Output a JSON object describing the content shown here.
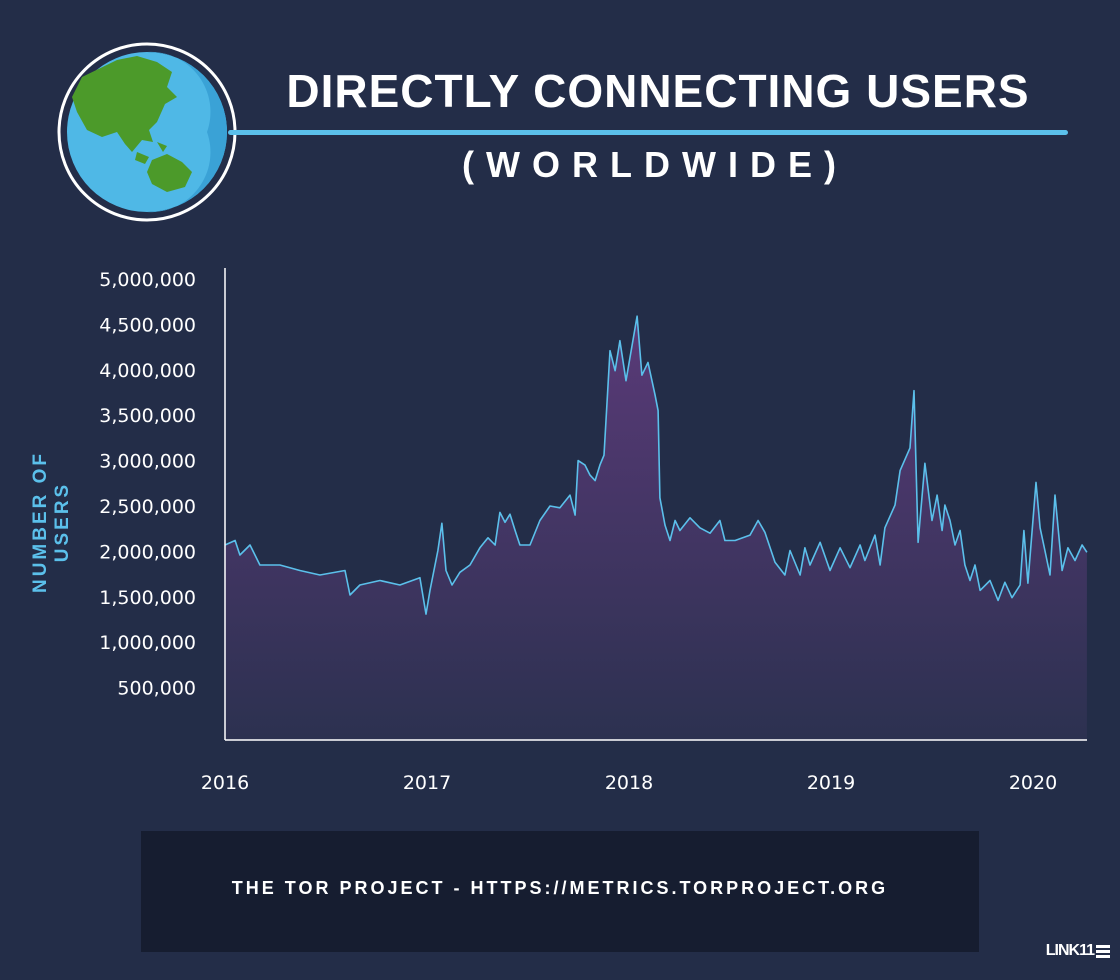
{
  "header": {
    "title": "DIRECTLY CONNECTING USERS",
    "subtitle": "(WORLDWIDE)",
    "icon": "globe-icon"
  },
  "footer": {
    "source": "THE TOR PROJECT - HTTPS://METRICS.TORPROJECT.ORG",
    "logo": "LINK11"
  },
  "colors": {
    "background": "#232d48",
    "accent": "#5bc0eb",
    "fill_top": "#5a3a78",
    "fill_bottom": "#2c3150",
    "footer_box": "#161d30"
  },
  "chart_data": {
    "type": "area",
    "title": "DIRECTLY CONNECTING USERS (WORLDWIDE)",
    "xlabel": "",
    "ylabel": "NUMBER OF USERS",
    "xlim": [
      2016,
      2020.27
    ],
    "ylim": [
      0,
      5000000
    ],
    "x_ticks": [
      2016,
      2017,
      2018,
      2019,
      2020
    ],
    "x_tick_labels": [
      "2016",
      "2017",
      "2018",
      "2019",
      "2020"
    ],
    "y_ticks": [
      500000,
      1000000,
      1500000,
      2000000,
      2500000,
      3000000,
      3500000,
      4000000,
      4500000,
      5000000
    ],
    "y_tick_labels": [
      "500,000",
      "1,000,000",
      "1,500,000",
      "2,000,000",
      "2,500,000",
      "3,000,000",
      "3,500,000",
      "4,000,000",
      "4,500,000",
      "5,000,000"
    ],
    "grid": false,
    "points": [
      [
        2016.0,
        2070000
      ],
      [
        2016.05,
        2120000
      ],
      [
        2016.074,
        1960000
      ],
      [
        2016.124,
        2070000
      ],
      [
        2016.173,
        1850000
      ],
      [
        2016.272,
        1850000
      ],
      [
        2016.371,
        1790000
      ],
      [
        2016.47,
        1740000
      ],
      [
        2016.594,
        1790000
      ],
      [
        2016.619,
        1520000
      ],
      [
        2016.668,
        1630000
      ],
      [
        2016.767,
        1680000
      ],
      [
        2016.866,
        1630000
      ],
      [
        2016.965,
        1710000
      ],
      [
        2016.995,
        1310000
      ],
      [
        2017.015,
        1570000
      ],
      [
        2017.054,
        2010000
      ],
      [
        2017.074,
        2310000
      ],
      [
        2017.094,
        1790000
      ],
      [
        2017.124,
        1630000
      ],
      [
        2017.163,
        1770000
      ],
      [
        2017.213,
        1850000
      ],
      [
        2017.262,
        2040000
      ],
      [
        2017.302,
        2150000
      ],
      [
        2017.337,
        2070000
      ],
      [
        2017.361,
        2430000
      ],
      [
        2017.386,
        2320000
      ],
      [
        2017.411,
        2410000
      ],
      [
        2017.436,
        2230000
      ],
      [
        2017.46,
        2070000
      ],
      [
        2017.51,
        2070000
      ],
      [
        2017.559,
        2340000
      ],
      [
        2017.609,
        2500000
      ],
      [
        2017.658,
        2480000
      ],
      [
        2017.708,
        2620000
      ],
      [
        2017.733,
        2400000
      ],
      [
        2017.748,
        3000000
      ],
      [
        2017.782,
        2950000
      ],
      [
        2017.807,
        2840000
      ],
      [
        2017.832,
        2780000
      ],
      [
        2017.856,
        2950000
      ],
      [
        2017.876,
        3060000
      ],
      [
        2017.906,
        4210000
      ],
      [
        2017.931,
        3990000
      ],
      [
        2017.955,
        4320000
      ],
      [
        2017.985,
        3880000
      ],
      [
        2018.04,
        4590000
      ],
      [
        2018.064,
        3940000
      ],
      [
        2018.094,
        4080000
      ],
      [
        2018.129,
        3720000
      ],
      [
        2018.144,
        3550000
      ],
      [
        2018.153,
        2590000
      ],
      [
        2018.178,
        2290000
      ],
      [
        2018.203,
        2120000
      ],
      [
        2018.228,
        2340000
      ],
      [
        2018.252,
        2230000
      ],
      [
        2018.302,
        2370000
      ],
      [
        2018.351,
        2260000
      ],
      [
        2018.401,
        2200000
      ],
      [
        2018.45,
        2340000
      ],
      [
        2018.475,
        2120000
      ],
      [
        2018.525,
        2120000
      ],
      [
        2018.599,
        2180000
      ],
      [
        2018.639,
        2340000
      ],
      [
        2018.673,
        2210000
      ],
      [
        2018.723,
        1880000
      ],
      [
        2018.772,
        1740000
      ],
      [
        2018.797,
        2010000
      ],
      [
        2018.847,
        1740000
      ],
      [
        2018.871,
        2040000
      ],
      [
        2018.896,
        1850000
      ],
      [
        2018.946,
        2100000
      ],
      [
        2018.995,
        1790000
      ],
      [
        2019.045,
        2040000
      ],
      [
        2019.094,
        1820000
      ],
      [
        2019.144,
        2070000
      ],
      [
        2019.168,
        1900000
      ],
      [
        2019.218,
        2180000
      ],
      [
        2019.243,
        1850000
      ],
      [
        2019.267,
        2260000
      ],
      [
        2019.317,
        2510000
      ],
      [
        2019.342,
        2890000
      ],
      [
        2019.391,
        3140000
      ],
      [
        2019.411,
        3770000
      ],
      [
        2019.431,
        2100000
      ],
      [
        2019.465,
        2970000
      ],
      [
        2019.5,
        2340000
      ],
      [
        2019.525,
        2620000
      ],
      [
        2019.55,
        2230000
      ],
      [
        2019.564,
        2510000
      ],
      [
        2019.589,
        2340000
      ],
      [
        2019.614,
        2070000
      ],
      [
        2019.639,
        2230000
      ],
      [
        2019.663,
        1850000
      ],
      [
        2019.688,
        1680000
      ],
      [
        2019.713,
        1850000
      ],
      [
        2019.738,
        1570000
      ],
      [
        2019.787,
        1680000
      ],
      [
        2019.827,
        1460000
      ],
      [
        2019.861,
        1660000
      ],
      [
        2019.896,
        1490000
      ],
      [
        2019.936,
        1630000
      ],
      [
        2019.955,
        2230000
      ],
      [
        2019.975,
        1650000
      ],
      [
        2020.015,
        2760000
      ],
      [
        2020.035,
        2260000
      ],
      [
        2020.059,
        2010000
      ],
      [
        2020.084,
        1740000
      ],
      [
        2020.109,
        2620000
      ],
      [
        2020.144,
        1790000
      ],
      [
        2020.173,
        2040000
      ],
      [
        2020.208,
        1900000
      ],
      [
        2020.243,
        2070000
      ],
      [
        2020.267,
        1990000
      ]
    ]
  }
}
